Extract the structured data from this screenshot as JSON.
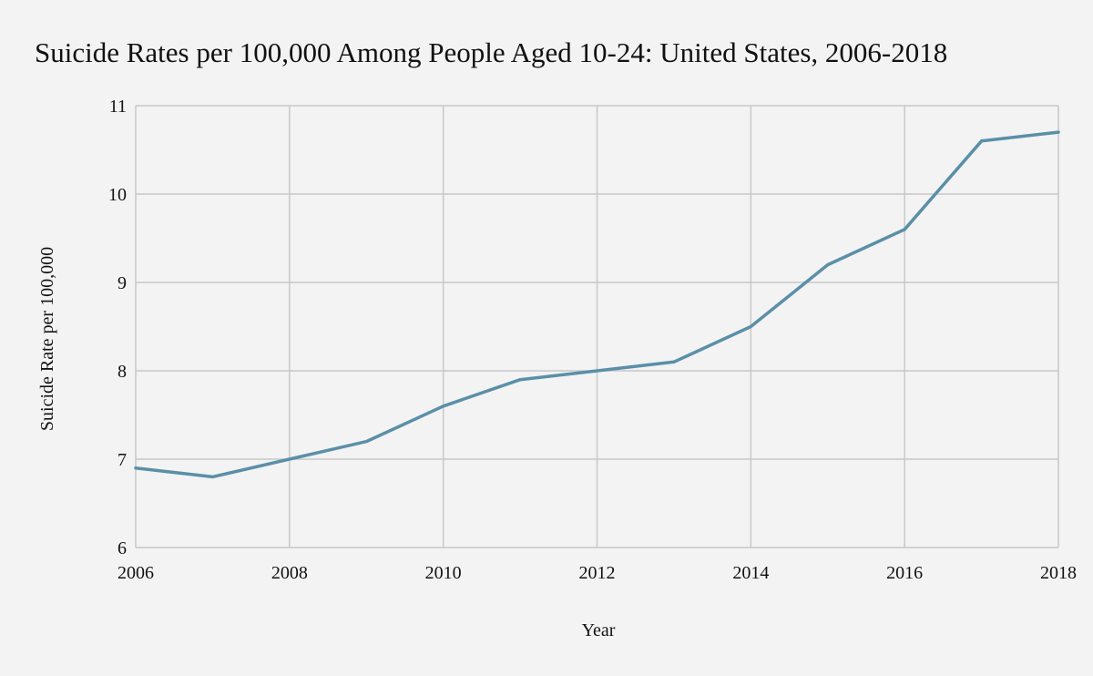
{
  "chart_data": {
    "type": "line",
    "title": "Suicide Rates per 100,000 Among People Aged 10-24: United States, 2006-2018",
    "xlabel": "Year",
    "ylabel": "Suicide Rate per 100,000",
    "xlim": [
      2006,
      2018
    ],
    "ylim": [
      6,
      11
    ],
    "x_ticks": [
      2006,
      2008,
      2010,
      2012,
      2014,
      2016,
      2018
    ],
    "y_ticks": [
      6,
      7,
      8,
      9,
      10,
      11
    ],
    "grid": true,
    "series": [
      {
        "x": [
          2006,
          2007,
          2008,
          2009,
          2010,
          2011,
          2012,
          2013,
          2014,
          2015,
          2016,
          2017,
          2018
        ],
        "values": [
          6.9,
          6.8,
          7.0,
          7.2,
          7.6,
          7.9,
          8.0,
          8.1,
          8.5,
          9.2,
          9.6,
          10.6,
          10.7
        ],
        "color": "#5b8fa8"
      }
    ],
    "colors": {
      "background": "#f3f3f3",
      "grid": "#c8c8c8",
      "line": "#5b8fa8"
    }
  }
}
